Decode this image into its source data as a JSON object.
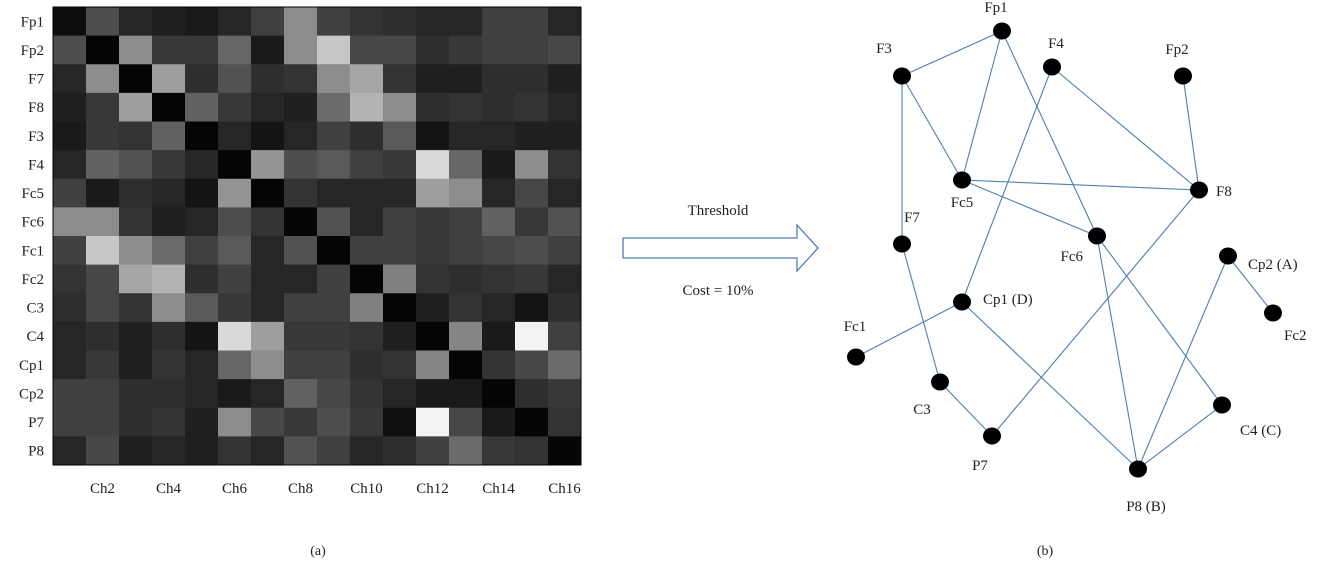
{
  "heatmap": {
    "row_labels": [
      "Fp1",
      "Fp2",
      "F7",
      "F8",
      "F3",
      "F4",
      "Fc5",
      "Fc6",
      "Fc1",
      "Fc2",
      "C3",
      "C4",
      "Cp1",
      "Cp2",
      "P7",
      "P8"
    ],
    "col_tick_labels": [
      "Ch2",
      "Ch4",
      "Ch6",
      "Ch8",
      "Ch10",
      "Ch12",
      "Ch14",
      "Ch16"
    ],
    "col_tick_channels": [
      2,
      4,
      6,
      8,
      10,
      12,
      14,
      16
    ],
    "values": [
      [
        0.05,
        0.3,
        0.15,
        0.12,
        0.1,
        0.15,
        0.25,
        0.55,
        0.25,
        0.2,
        0.18,
        0.15,
        0.15,
        0.25,
        0.25,
        0.15
      ],
      [
        0.3,
        0.02,
        0.55,
        0.22,
        0.22,
        0.4,
        0.1,
        0.55,
        0.78,
        0.28,
        0.28,
        0.18,
        0.22,
        0.25,
        0.25,
        0.28
      ],
      [
        0.15,
        0.55,
        0.02,
        0.62,
        0.18,
        0.32,
        0.18,
        0.2,
        0.55,
        0.65,
        0.2,
        0.12,
        0.12,
        0.18,
        0.18,
        0.12
      ],
      [
        0.12,
        0.22,
        0.62,
        0.02,
        0.38,
        0.22,
        0.15,
        0.12,
        0.42,
        0.7,
        0.55,
        0.18,
        0.2,
        0.18,
        0.2,
        0.15
      ],
      [
        0.1,
        0.22,
        0.2,
        0.38,
        0.02,
        0.15,
        0.08,
        0.15,
        0.25,
        0.18,
        0.35,
        0.08,
        0.15,
        0.15,
        0.12,
        0.12
      ],
      [
        0.15,
        0.38,
        0.32,
        0.22,
        0.15,
        0.02,
        0.58,
        0.3,
        0.35,
        0.25,
        0.22,
        0.85,
        0.4,
        0.1,
        0.55,
        0.2
      ],
      [
        0.25,
        0.1,
        0.18,
        0.15,
        0.08,
        0.58,
        0.02,
        0.2,
        0.15,
        0.15,
        0.15,
        0.62,
        0.55,
        0.15,
        0.28,
        0.15
      ],
      [
        0.55,
        0.55,
        0.2,
        0.12,
        0.15,
        0.3,
        0.2,
        0.02,
        0.32,
        0.15,
        0.25,
        0.22,
        0.25,
        0.38,
        0.22,
        0.32
      ],
      [
        0.25,
        0.78,
        0.55,
        0.42,
        0.25,
        0.35,
        0.15,
        0.32,
        0.02,
        0.25,
        0.25,
        0.22,
        0.25,
        0.28,
        0.3,
        0.25
      ],
      [
        0.2,
        0.28,
        0.65,
        0.7,
        0.18,
        0.25,
        0.15,
        0.15,
        0.25,
        0.02,
        0.5,
        0.2,
        0.18,
        0.2,
        0.22,
        0.15
      ],
      [
        0.18,
        0.28,
        0.2,
        0.55,
        0.35,
        0.22,
        0.15,
        0.25,
        0.25,
        0.5,
        0.02,
        0.12,
        0.2,
        0.15,
        0.08,
        0.18
      ],
      [
        0.15,
        0.18,
        0.12,
        0.18,
        0.08,
        0.85,
        0.62,
        0.22,
        0.22,
        0.2,
        0.12,
        0.02,
        0.52,
        0.1,
        0.95,
        0.25
      ],
      [
        0.15,
        0.22,
        0.12,
        0.2,
        0.15,
        0.4,
        0.55,
        0.25,
        0.25,
        0.18,
        0.2,
        0.52,
        0.02,
        0.2,
        0.28,
        0.42
      ],
      [
        0.25,
        0.25,
        0.18,
        0.18,
        0.15,
        0.1,
        0.15,
        0.38,
        0.28,
        0.2,
        0.15,
        0.1,
        0.1,
        0.02,
        0.18,
        0.22
      ],
      [
        0.25,
        0.25,
        0.18,
        0.2,
        0.12,
        0.55,
        0.28,
        0.22,
        0.3,
        0.22,
        0.06,
        0.95,
        0.28,
        0.1,
        0.02,
        0.2
      ],
      [
        0.15,
        0.28,
        0.12,
        0.15,
        0.12,
        0.2,
        0.15,
        0.32,
        0.25,
        0.15,
        0.18,
        0.25,
        0.42,
        0.22,
        0.2,
        0.02
      ]
    ]
  },
  "captions": {
    "left": "(a)",
    "right": "(b)"
  },
  "arrow": {
    "top_label": "Threshold",
    "bottom_label": "Cost = 10%"
  },
  "graph": {
    "nodes": [
      {
        "id": "Fp1",
        "label": "Fp1"
      },
      {
        "id": "F3",
        "label": "F3"
      },
      {
        "id": "F4",
        "label": "F4"
      },
      {
        "id": "Fp2",
        "label": "Fp2"
      },
      {
        "id": "Fc5",
        "label": "Fc5"
      },
      {
        "id": "F8",
        "label": "F8"
      },
      {
        "id": "F7",
        "label": "F7"
      },
      {
        "id": "Fc6",
        "label": "Fc6"
      },
      {
        "id": "Cp2",
        "label": "Cp2 (A)"
      },
      {
        "id": "Fc2",
        "label": "Fc2"
      },
      {
        "id": "Cp1",
        "label": "Cp1 (D)"
      },
      {
        "id": "Fc1",
        "label": "Fc1"
      },
      {
        "id": "C3",
        "label": "C3"
      },
      {
        "id": "P7",
        "label": "P7"
      },
      {
        "id": "C4",
        "label": "C4 (C)"
      },
      {
        "id": "P8",
        "label": "P8 (B)"
      }
    ],
    "edges": [
      [
        "F3",
        "Fp1"
      ],
      [
        "F3",
        "Fc5"
      ],
      [
        "F3",
        "F7"
      ],
      [
        "Fp1",
        "Fc5"
      ],
      [
        "Fp1",
        "Fc6"
      ],
      [
        "F4",
        "F8"
      ],
      [
        "F4",
        "Cp1"
      ],
      [
        "Fp2",
        "F8"
      ],
      [
        "Fc5",
        "F8"
      ],
      [
        "Fc5",
        "Fc6"
      ],
      [
        "F8",
        "P7"
      ],
      [
        "F7",
        "C3"
      ],
      [
        "Fc6",
        "P8"
      ],
      [
        "Fc6",
        "C4"
      ],
      [
        "Cp2",
        "Fc2"
      ],
      [
        "Cp2",
        "P8"
      ],
      [
        "Cp1",
        "Fc1"
      ],
      [
        "Cp1",
        "P8"
      ],
      [
        "C3",
        "P7"
      ],
      [
        "C4",
        "P8"
      ]
    ]
  }
}
